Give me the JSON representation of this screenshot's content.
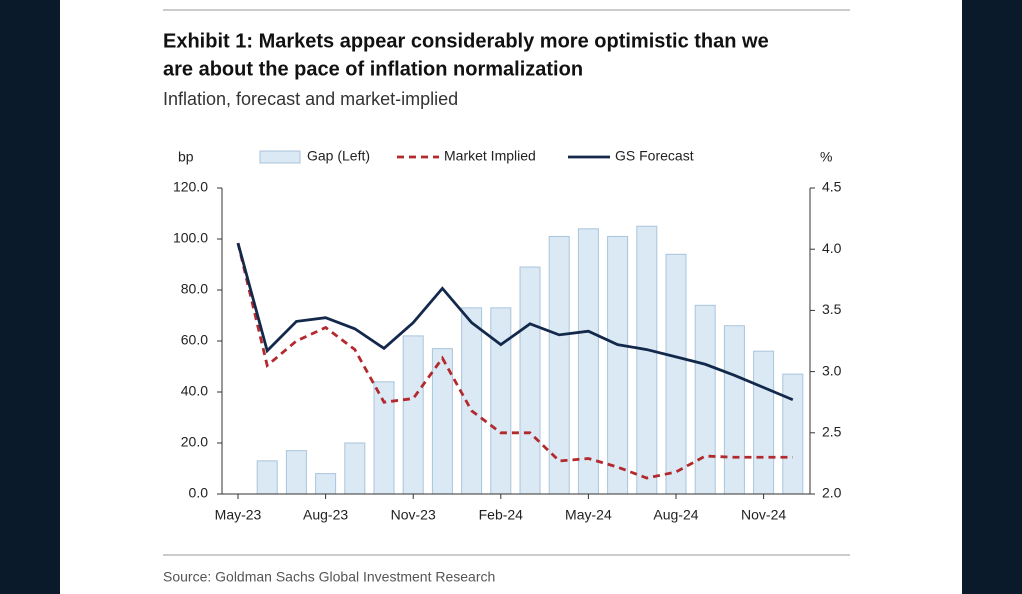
{
  "chart_data": {
    "type": "bar",
    "title": [
      "Exhibit 1: Markets appear considerably more optimistic than we",
      "are about the pace of inflation normalization"
    ],
    "subtitle": "Inflation, forecast and market-implied",
    "y_label": "bp",
    "y2_label": "%",
    "source": "Source: Goldman Sachs Global Investment Research",
    "categories": [
      "May-23",
      null,
      null,
      "Aug-23",
      null,
      null,
      "Nov-23",
      null,
      null,
      "Feb-24",
      null,
      null,
      "May-24",
      null,
      null,
      "Aug-24",
      null,
      null,
      "Nov-24",
      null
    ],
    "series": [
      {
        "name": "Gap (Left)",
        "type": "bar",
        "color": "#dbe9f5",
        "axis": "y",
        "values": [
          null,
          13,
          17,
          8,
          20,
          44,
          62,
          57,
          73,
          73,
          89,
          101,
          104,
          101,
          105,
          94,
          74,
          66,
          56,
          47
        ]
      },
      {
        "name": "Market Implied",
        "type": "line",
        "dashed": true,
        "color": "#b22a2e",
        "axis": "y2",
        "values": [
          4.05,
          3.05,
          3.25,
          3.36,
          3.18,
          2.75,
          2.78,
          3.11,
          2.68,
          2.5,
          2.5,
          2.27,
          2.29,
          2.22,
          2.13,
          2.18,
          2.31,
          2.3,
          2.3,
          2.3
        ]
      },
      {
        "name": "GS Forecast",
        "type": "line",
        "dashed": false,
        "color": "#13294b",
        "axis": "y2",
        "values": [
          4.05,
          3.17,
          3.41,
          3.44,
          3.35,
          3.19,
          3.4,
          3.68,
          3.4,
          3.22,
          3.39,
          3.3,
          3.33,
          3.22,
          3.18,
          3.12,
          3.06,
          2.97,
          2.87,
          2.77
        ]
      }
    ],
    "ylim": [
      0,
      120
    ],
    "yticks": [
      {
        "value": 0,
        "label": "0.0"
      },
      {
        "value": 20,
        "label": "20.0"
      },
      {
        "value": 40,
        "label": "40.0"
      },
      {
        "value": 60,
        "label": "60.0"
      },
      {
        "value": 80,
        "label": "80.0"
      },
      {
        "value": 100,
        "label": "100.0"
      },
      {
        "value": 120,
        "label": "120.0"
      }
    ],
    "y2lim": [
      2,
      4.5
    ],
    "y2ticks": [
      {
        "value": 2,
        "label": "2.0"
      },
      2.5,
      {
        "value": 3,
        "label": "3.0"
      },
      3.5,
      {
        "value": 4,
        "label": "4.0"
      },
      4.5
    ]
  }
}
